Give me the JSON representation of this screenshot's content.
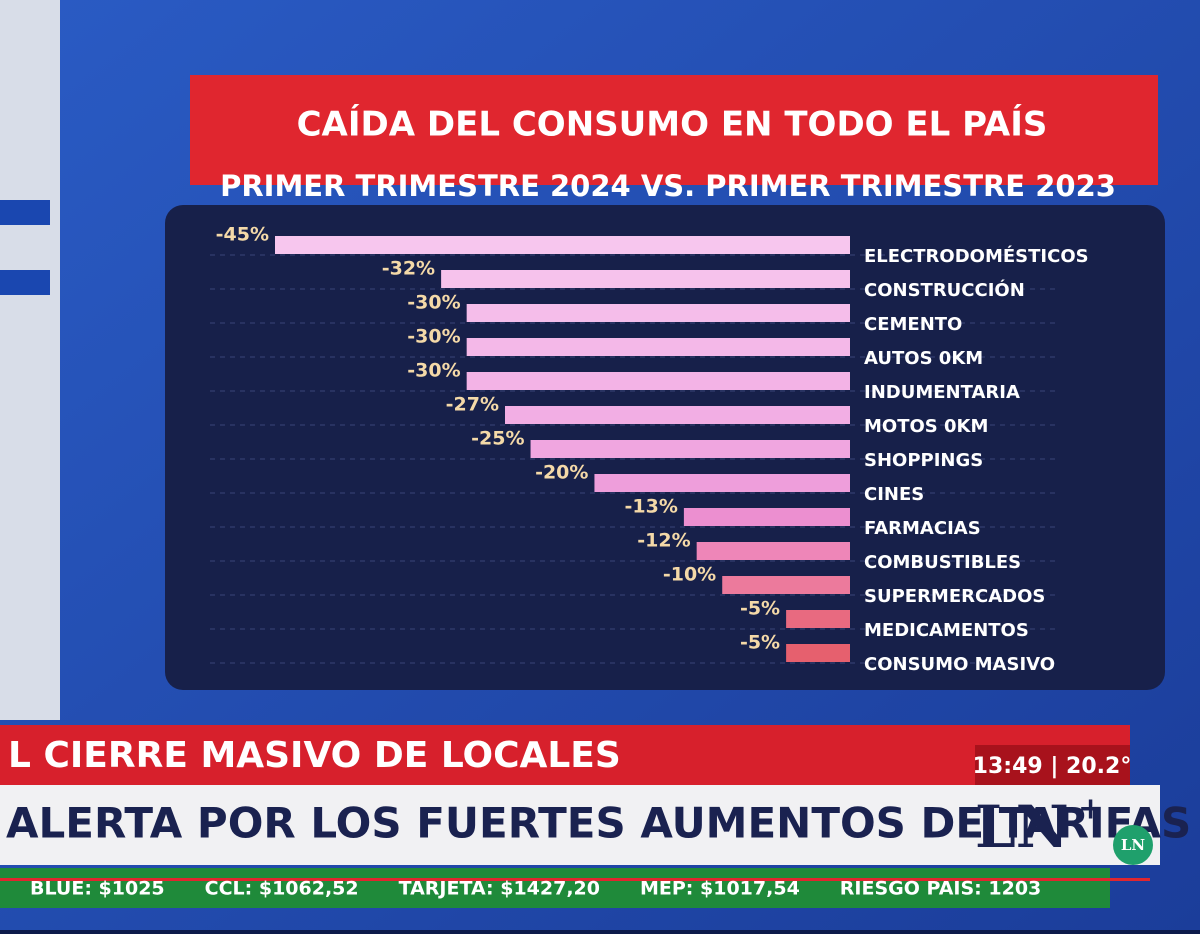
{
  "chart_data": {
    "type": "bar",
    "orientation": "horizontal",
    "title": "CAÍDA DEL CONSUMO EN TODO EL PAÍS",
    "subtitle": "PRIMER TRIMESTRE 2024 VS. PRIMER TRIMESTRE 2023",
    "categories": [
      "ELECTRODOMÉSTICOS",
      "CONSTRUCCIÓN",
      "CEMENTO",
      "AUTOS 0KM",
      "INDUMENTARIA",
      "MOTOS 0KM",
      "SHOPPINGS",
      "CINES",
      "FARMACIAS",
      "COMBUSTIBLES",
      "SUPERMERCADOS",
      "MEDICAMENTOS",
      "CONSUMO MASIVO"
    ],
    "values": [
      -45,
      -32,
      -30,
      -30,
      -30,
      -27,
      -25,
      -20,
      -13,
      -12,
      -10,
      -5,
      -5
    ],
    "value_labels": [
      "-45%",
      "-32%",
      "-30%",
      "-30%",
      "-30%",
      "-27%",
      "-25%",
      "-20%",
      "-13%",
      "-12%",
      "-10%",
      "-5%",
      "-5%"
    ],
    "colors": [
      "#f7c6ee",
      "#f6c2ec",
      "#f5bdea",
      "#f4b8e8",
      "#f3b3e6",
      "#f2aee4",
      "#f0a6e0",
      "#ee9edb",
      "#ec8fd0",
      "#ee86b8",
      "#ec7a9c",
      "#e86a80",
      "#e6606e"
    ]
  },
  "banner": {
    "headline_top": "L CIERRE MASIVO DE LOCALES",
    "clock": "13:49 | 20.2°",
    "headline_main": "ALERTA POR LOS FUERTES AUMENTOS DE TARIFAS",
    "logo": "LN",
    "logo_plus": "+",
    "corner_logo": "LN"
  },
  "ticker": [
    "BLUE: $1025",
    "CCL: $1062,52",
    "TARJETA: $1427,20",
    "MEP: $1017,54",
    "RIESGO PAIS: 1203"
  ]
}
